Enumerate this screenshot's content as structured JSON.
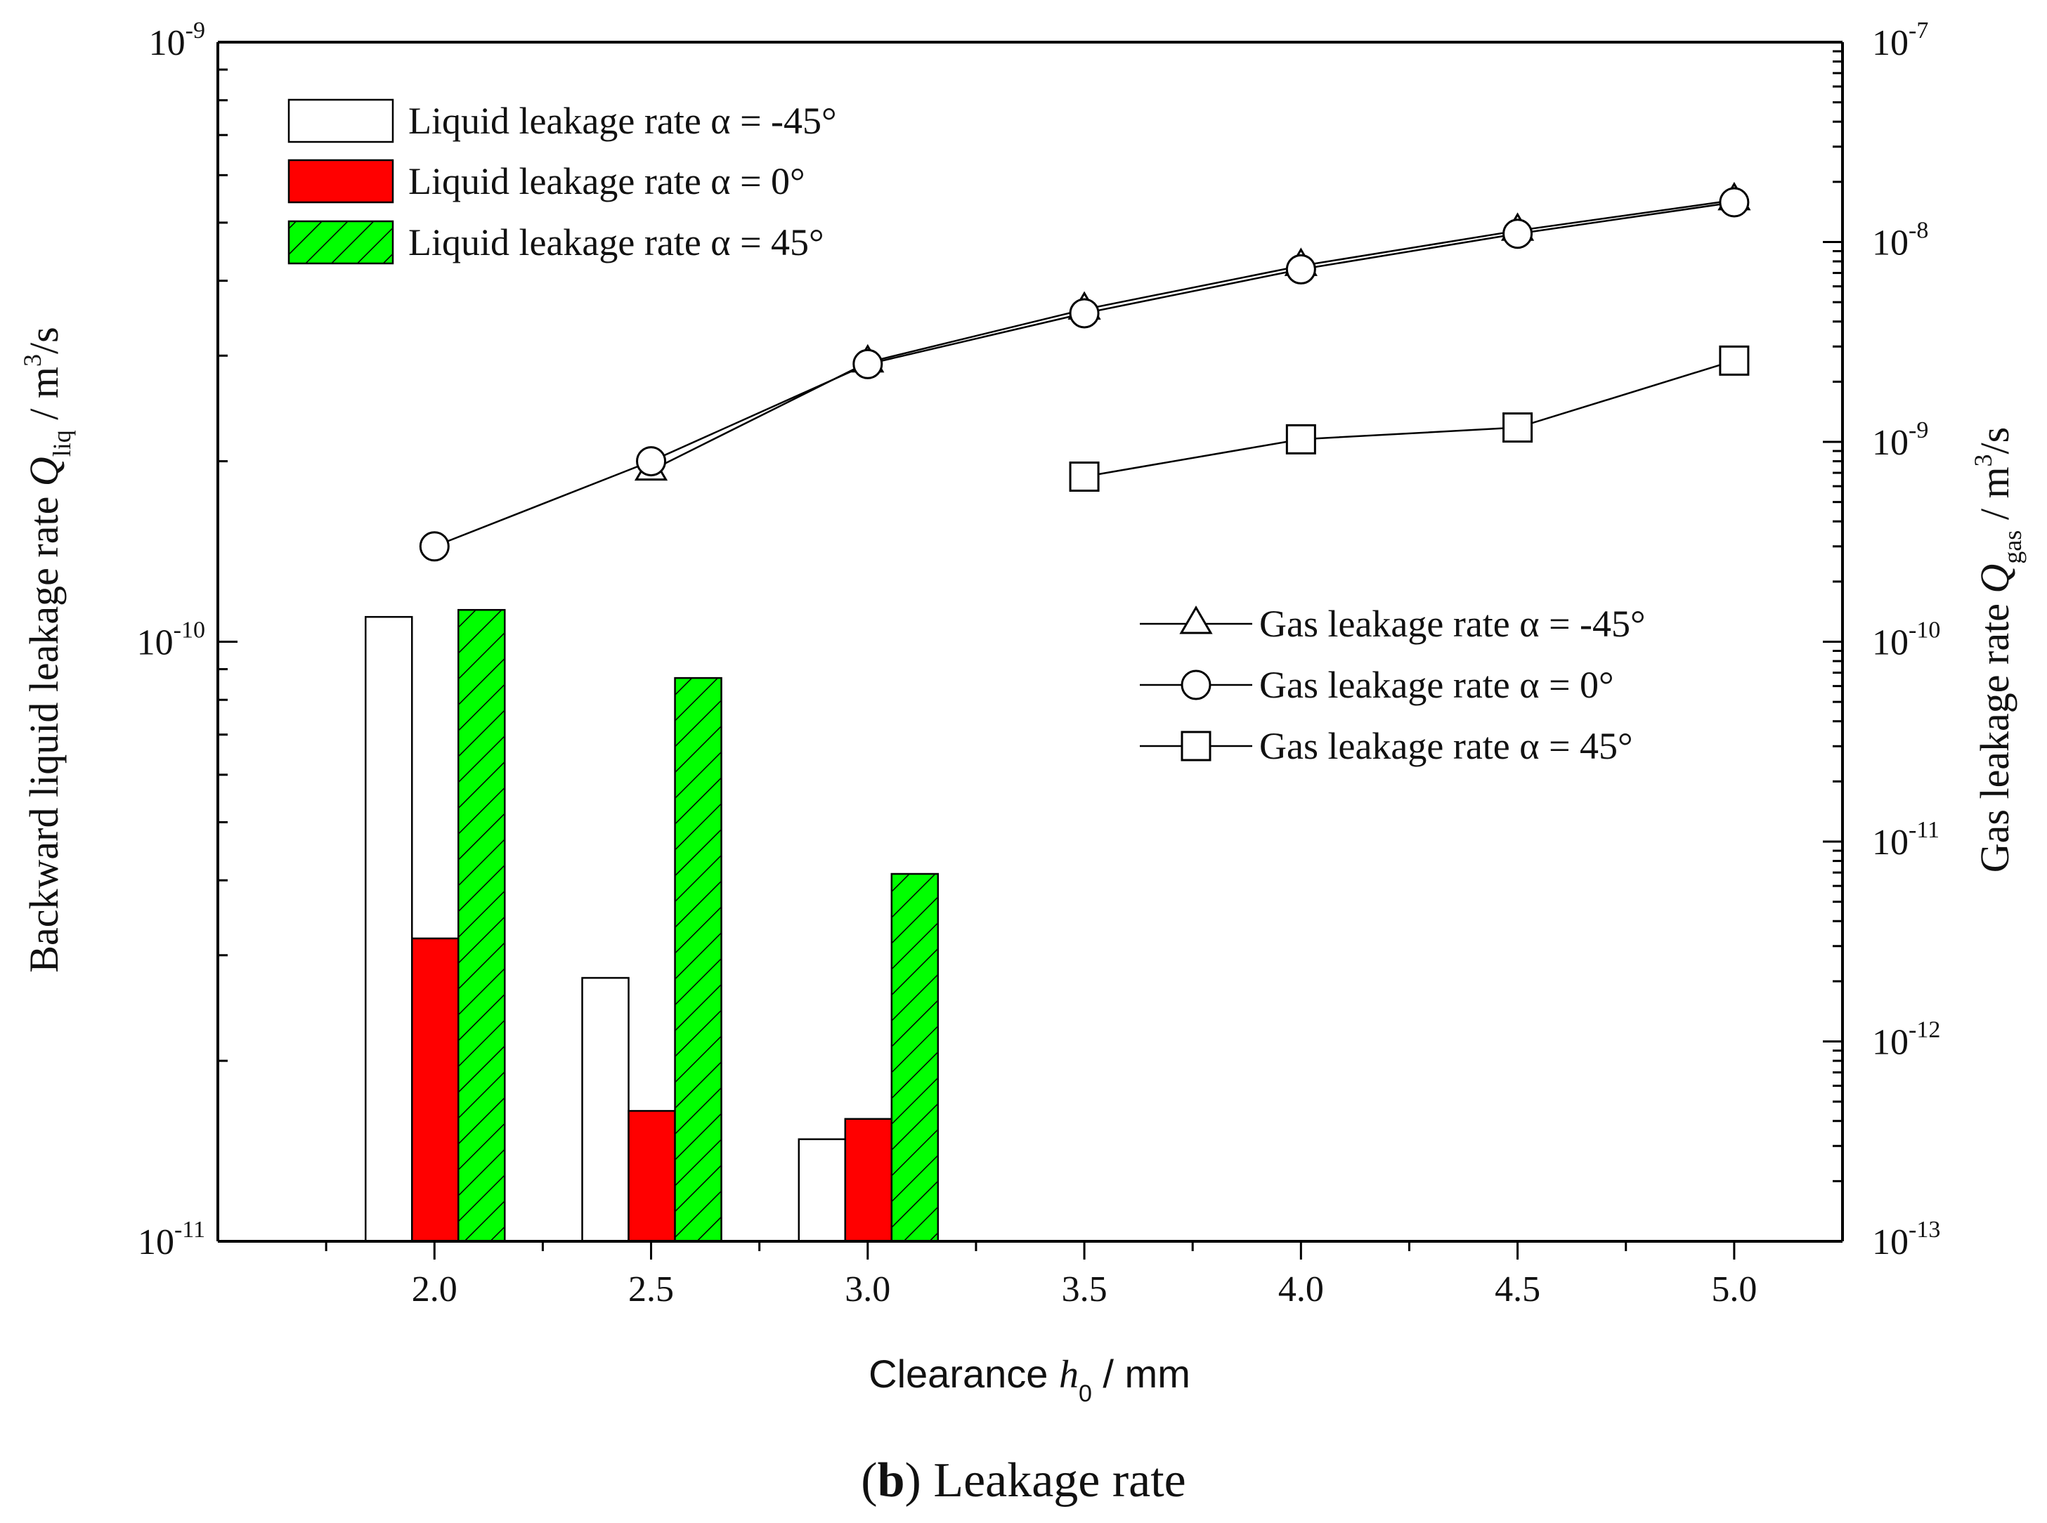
{
  "caption": {
    "letter": "b",
    "text": "Leakage rate"
  },
  "chart_data": {
    "type": "bar+line",
    "xlabel": {
      "prefix": "Clearance",
      "symbol": "h",
      "sub": "0",
      "unit": "/  mm"
    },
    "ylabel_left": {
      "prefix": "Backward liquid leakage rate",
      "symbol": "Q",
      "sub": "liq",
      "unit": "/  m",
      "sup": "3",
      "tail": "/s"
    },
    "ylabel_right": {
      "prefix": "Gas leakage rate",
      "symbol": "Q",
      "sub": "gas",
      "unit": "/  m",
      "sup": "3",
      "tail": "/s"
    },
    "categories": [
      "2.0",
      "2.5",
      "3.0",
      "3.5",
      "4.0",
      "4.5",
      "5.0"
    ],
    "x": [
      2.0,
      2.5,
      3.0,
      3.5,
      4.0,
      4.5,
      5.0
    ],
    "xlim": [
      1.5,
      5.25
    ],
    "ylim_left": [
      1e-11,
      1e-09
    ],
    "ylim_right": [
      1e-13,
      1e-07
    ],
    "left_ticks": [
      {
        "base": "10",
        "exp": "-11"
      },
      {
        "base": "10",
        "exp": "-10"
      },
      {
        "base": "10",
        "exp": "-9"
      }
    ],
    "right_ticks": [
      {
        "base": "10",
        "exp": "-13"
      },
      {
        "base": "10",
        "exp": "-12"
      },
      {
        "base": "10",
        "exp": "-11"
      },
      {
        "base": "10",
        "exp": "-10"
      },
      {
        "base": "10",
        "exp": "-9"
      },
      {
        "base": "10",
        "exp": "-8"
      },
      {
        "base": "10",
        "exp": "-7"
      }
    ],
    "bar_series": [
      {
        "name": "Liquid leakage rate",
        "alpha": "α = -45°",
        "color": "#ffffff",
        "pattern": "none",
        "values": [
          1.1e-10,
          2.75e-11,
          1.48e-11,
          null,
          null,
          null,
          null
        ]
      },
      {
        "name": "Liquid leakage rate",
        "alpha": "α = 0°",
        "color": "#ff0000",
        "pattern": "none",
        "values": [
          3.2e-11,
          1.65e-11,
          1.6e-11,
          null,
          null,
          null,
          null
        ]
      },
      {
        "name": "Liquid leakage rate",
        "alpha": "α = 45°",
        "color": "#00ff00",
        "pattern": "hatch",
        "values": [
          1.13e-10,
          8.7e-11,
          4.1e-11,
          null,
          null,
          null,
          null
        ]
      }
    ],
    "line_series": [
      {
        "name": "Gas leakage rate",
        "alpha": "α = -45°",
        "marker": "triangle",
        "values": [
          null,
          7.2e-10,
          2.5e-09,
          4.6e-09,
          7.6e-09,
          1.14e-08,
          1.62e-08
        ]
      },
      {
        "name": "Gas leakage rate",
        "alpha": "α = 0°",
        "marker": "circle",
        "values": [
          3e-10,
          8e-10,
          2.45e-09,
          4.4e-09,
          7.3e-09,
          1.1e-08,
          1.58e-08
        ]
      },
      {
        "name": "Gas leakage rate",
        "alpha": "α = 45°",
        "marker": "square",
        "values": [
          null,
          null,
          null,
          6.7e-10,
          1.03e-09,
          1.18e-09,
          2.55e-09
        ]
      }
    ]
  }
}
